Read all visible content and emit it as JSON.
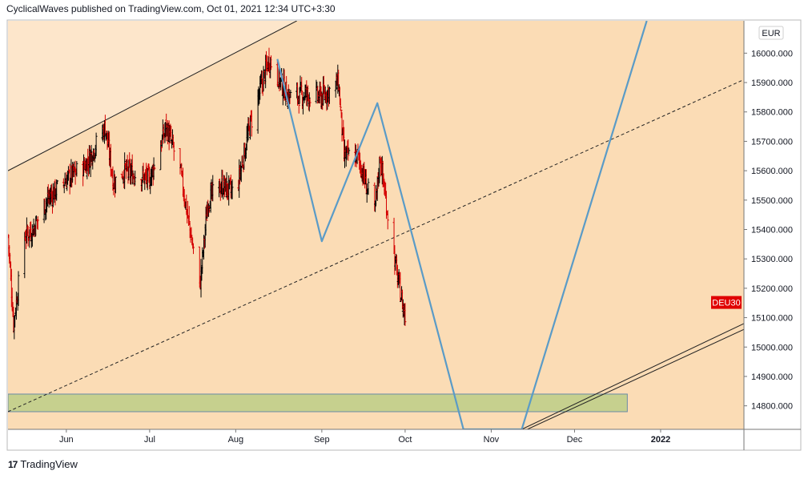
{
  "header": {
    "publish_line": "CyclicalWaves published on TradingView.com, Oct 01, 2021 12:34 UTC+3:30"
  },
  "footer": {
    "brand": "TradingView",
    "logo_text": "17"
  },
  "colors": {
    "plot_bg": "#fbdcb5",
    "upper_band": "#fde6cb",
    "bar_up": "#000000",
    "bar_down": "#d40000",
    "projection": "#5a9bc7",
    "support_zone": "#c6d08e",
    "symbol_badge": "#e00000"
  },
  "chart_data": {
    "type": "ohlc",
    "symbol_label": "DEU30",
    "currency": "EUR",
    "x_axis": {
      "type": "date",
      "range": [
        "2021-05-11",
        "2022-01-31"
      ],
      "tick_labels": [
        {
          "date": "2021-06-01",
          "label": "Jun"
        },
        {
          "date": "2021-07-01",
          "label": "Jul"
        },
        {
          "date": "2021-08-01",
          "label": "Aug"
        },
        {
          "date": "2021-09-01",
          "label": "Sep"
        },
        {
          "date": "2021-10-01",
          "label": "Oct"
        },
        {
          "date": "2021-11-01",
          "label": "Nov"
        },
        {
          "date": "2021-12-01",
          "label": "Dec"
        },
        {
          "date": "2022-01-01",
          "label": "2022"
        }
      ]
    },
    "y_axis": {
      "range": [
        14720,
        16110
      ],
      "ticks": [
        14800,
        14900,
        15000,
        15100,
        15200,
        15300,
        15400,
        15500,
        15600,
        15700,
        15800,
        15900,
        16000
      ],
      "tick_labels": [
        "14800.000",
        "14900.000",
        "15000.000",
        "15100.000",
        "15200.000",
        "15300.000",
        "15400.000",
        "15500.000",
        "15600.000",
        "15700.000",
        "15800.000",
        "15900.000",
        "16000.000"
      ]
    },
    "price_anchors": [
      {
        "date": "2021-05-11",
        "value": 15380
      },
      {
        "date": "2021-05-13",
        "value": 15080
      },
      {
        "date": "2021-05-17",
        "value": 15380
      },
      {
        "date": "2021-05-20",
        "value": 15400
      },
      {
        "date": "2021-05-25",
        "value": 15500
      },
      {
        "date": "2021-06-01",
        "value": 15570
      },
      {
        "date": "2021-06-08",
        "value": 15620
      },
      {
        "date": "2021-06-15",
        "value": 15750
      },
      {
        "date": "2021-06-18",
        "value": 15560
      },
      {
        "date": "2021-06-22",
        "value": 15600
      },
      {
        "date": "2021-07-01",
        "value": 15570
      },
      {
        "date": "2021-07-07",
        "value": 15750
      },
      {
        "date": "2021-07-12",
        "value": 15600
      },
      {
        "date": "2021-07-19",
        "value": 15200
      },
      {
        "date": "2021-07-22",
        "value": 15500
      },
      {
        "date": "2021-07-27",
        "value": 15550
      },
      {
        "date": "2021-08-01",
        "value": 15520
      },
      {
        "date": "2021-08-06",
        "value": 15750
      },
      {
        "date": "2021-08-13",
        "value": 15980
      },
      {
        "date": "2021-08-20",
        "value": 15850
      },
      {
        "date": "2021-08-26",
        "value": 15860
      },
      {
        "date": "2021-09-01",
        "value": 15850
      },
      {
        "date": "2021-09-07",
        "value": 15900
      },
      {
        "date": "2021-09-09",
        "value": 15650
      },
      {
        "date": "2021-09-14",
        "value": 15650
      },
      {
        "date": "2021-09-20",
        "value": 15450
      },
      {
        "date": "2021-09-22",
        "value": 15650
      },
      {
        "date": "2021-09-24",
        "value": 15500
      },
      {
        "date": "2021-09-28",
        "value": 15250
      },
      {
        "date": "2021-10-01",
        "value": 15100
      }
    ],
    "annotations": {
      "upper_channel_line": [
        {
          "date": "2021-05-11",
          "value": 15600
        },
        {
          "date": "2021-08-23",
          "value": 16110
        }
      ],
      "middle_dashed_line": [
        {
          "date": "2021-05-11",
          "value": 14780
        },
        {
          "date": "2022-01-31",
          "value": 15910
        }
      ],
      "lower_channel_line_a": [
        {
          "date": "2021-11-12",
          "value": 14720
        },
        {
          "date": "2022-01-31",
          "value": 15080
        }
      ],
      "lower_channel_line_b": [
        {
          "date": "2021-11-14",
          "value": 14720
        },
        {
          "date": "2022-01-31",
          "value": 15060
        }
      ],
      "wave_projection": [
        {
          "date": "2021-08-16",
          "value": 15980
        },
        {
          "date": "2021-09-01",
          "value": 15360
        },
        {
          "date": "2021-09-21",
          "value": 15830
        },
        {
          "date": "2021-10-22",
          "value": 14720
        },
        {
          "date": "2021-11-12",
          "value": 14720
        },
        {
          "date": "2021-12-27",
          "value": 16110
        }
      ],
      "support_zone": {
        "from": "2021-05-11",
        "to": "2021-12-20",
        "low": 14780,
        "high": 14840
      }
    },
    "grid": false,
    "legend": "none"
  }
}
